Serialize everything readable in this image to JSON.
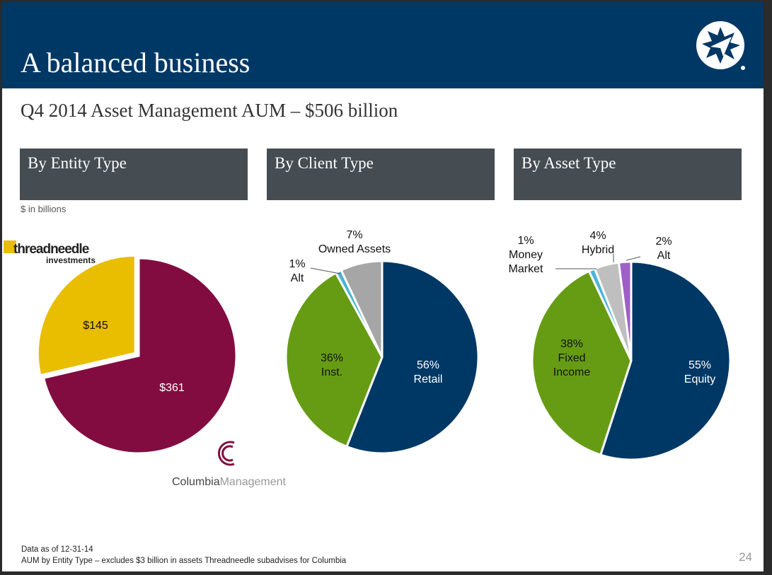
{
  "header": {
    "title": "A balanced business"
  },
  "subtitle": "Q4 2014 Asset Management AUM – $506 billion",
  "unit_note": "$ in billions",
  "logos": {
    "threadneedle": "threadneedle investments",
    "columbia": "ColumbiaManagement"
  },
  "footnotes": [
    "Data as of 12-31-14",
    "AUM by Entity Type – excludes $3 billion in assets Threadneedle subadvises for Columbia"
  ],
  "page_number": "24",
  "colors": {
    "header": "#003865",
    "box": "#454c52"
  },
  "chart_data": [
    {
      "type": "pie",
      "title": "By Entity Type",
      "slices": [
        {
          "label": "$361",
          "value": 361,
          "color": "#820c40"
        },
        {
          "label": "$145",
          "value": 145,
          "color": "#e9bd00"
        }
      ]
    },
    {
      "type": "pie",
      "title": "By Client Type",
      "slices": [
        {
          "label": "56%",
          "name": "Retail",
          "value": 56,
          "color": "#003865"
        },
        {
          "label": "36%",
          "name": "Inst.",
          "value": 36,
          "color": "#669c14"
        },
        {
          "label": "1%",
          "name": "Alt",
          "value": 1,
          "color": "#4ab4d6"
        },
        {
          "label": "7%",
          "name": "Owned Assets",
          "value": 7,
          "color": "#a6a6a6"
        }
      ]
    },
    {
      "type": "pie",
      "title": "By Asset Type",
      "slices": [
        {
          "label": "55%",
          "name": "Equity",
          "value": 55,
          "color": "#003865"
        },
        {
          "label": "38%",
          "name": "Fixed Income",
          "value": 38,
          "color": "#669c14"
        },
        {
          "label": "1%",
          "name": "Money Market",
          "value": 1,
          "color": "#4ab4d6"
        },
        {
          "label": "4%",
          "name": "Hybrid",
          "value": 4,
          "color": "#bfbfbf"
        },
        {
          "label": "2%",
          "name": "Alt",
          "value": 2,
          "color": "#9e5fc6"
        }
      ]
    }
  ]
}
